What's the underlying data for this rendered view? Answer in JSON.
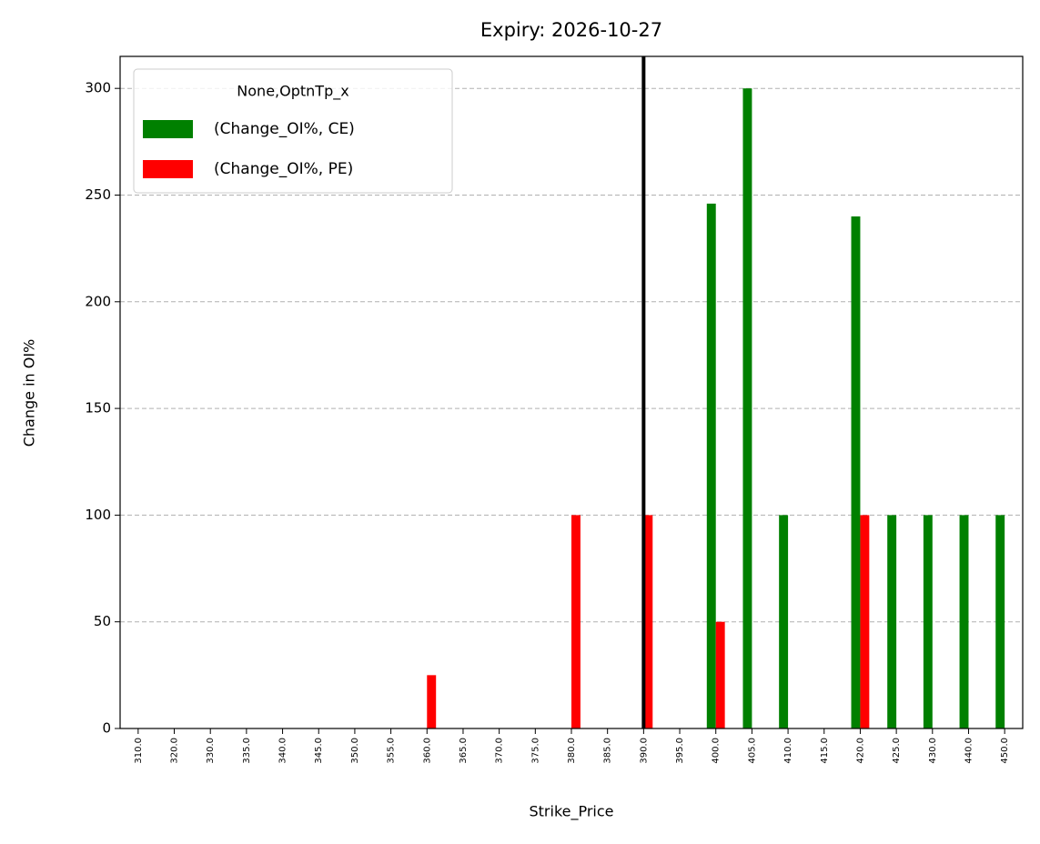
{
  "chart_data": {
    "type": "bar",
    "title": "Expiry: 2026-10-27",
    "xlabel": "Strike_Price",
    "ylabel": "Change in OI%",
    "categories": [
      "310.0",
      "320.0",
      "330.0",
      "335.0",
      "340.0",
      "345.0",
      "350.0",
      "355.0",
      "360.0",
      "365.0",
      "370.0",
      "375.0",
      "380.0",
      "385.0",
      "390.0",
      "395.0",
      "400.0",
      "405.0",
      "410.0",
      "415.0",
      "420.0",
      "425.0",
      "430.0",
      "440.0",
      "450.0"
    ],
    "series": [
      {
        "name": "(Change_OI%, CE)",
        "color": "#008000",
        "values": [
          0,
          0,
          0,
          0,
          0,
          0,
          0,
          0,
          0,
          0,
          0,
          0,
          0,
          0,
          0,
          0,
          246,
          300,
          100,
          0,
          240,
          100,
          100,
          100,
          100
        ]
      },
      {
        "name": "(Change_OI%, PE)",
        "color": "#ff0000",
        "values": [
          0,
          0,
          0,
          0,
          0,
          0,
          0,
          0,
          25,
          0,
          0,
          0,
          100,
          0,
          100,
          0,
          50,
          0,
          0,
          0,
          100,
          0,
          0,
          0,
          0
        ]
      }
    ],
    "legend_title": "None,OptnTp_x",
    "legend": "upper left",
    "vline": "390.0",
    "ylim": [
      0,
      315
    ],
    "yticks": [
      0,
      50,
      100,
      150,
      200,
      250,
      300
    ],
    "grid": true
  }
}
